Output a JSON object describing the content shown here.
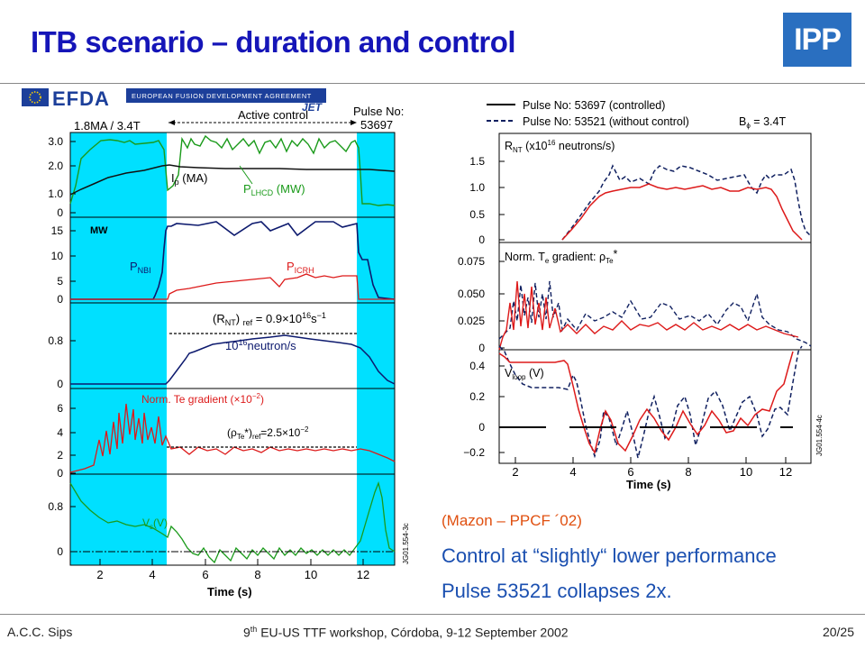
{
  "slide": {
    "title": "ITB scenario – duration and control",
    "logo_text": "IPP",
    "footer_left": "A.C.C. Sips",
    "footer_center_prefix": "9",
    "footer_center_sup": "th",
    "footer_center_suffix": " EU-US TTF workshop, Córdoba, 9-12 September 2002",
    "footer_right": "20/25",
    "colors": {
      "title": "#1515b8",
      "notes_blue": "#1a4fb0",
      "citation": "#e05010",
      "cyan": "#00e0ff",
      "green": "#1a9a1a",
      "navy": "#102060",
      "red": "#dd1a1a"
    }
  },
  "notes": {
    "citation": "(Mazon – PPCF ´02)",
    "line1": "Control at “slightly“ lower performance",
    "line2": "Pulse 53521 collapses 2x."
  },
  "left_figure": {
    "efda_text": "EFDA",
    "efda_sub": "EUROPEAN FUSION DEVELOPMENT AGREEMENT",
    "jet_text": "JET",
    "header_left": "1.8MA / 3.4T",
    "active_control": "Active control",
    "pulse_no_label": "Pulse No:",
    "pulse_no": "53697",
    "side_label": "JG01.554-3c",
    "xlabel": "Time (s)",
    "xticks": [
      "2",
      "4",
      "6",
      "8",
      "10",
      "12"
    ],
    "panels": [
      {
        "yticks": [
          "3.0",
          "2.0",
          "1.0",
          "0"
        ],
        "labels": {
          "ip": "I",
          "ip_sub": "p",
          "ip_unit": " (MA)",
          "plh": "P",
          "plh_sub": "LHCD",
          "plh_unit": " (MW)"
        }
      },
      {
        "yticks": [
          "15",
          "10",
          "5",
          "0"
        ],
        "labels": {
          "mw": "MW",
          "pnbi": "P",
          "pnbi_sub": "NBI",
          "picrh": "P",
          "picrh_sub": "ICRH"
        }
      },
      {
        "yticks": [
          "0.8",
          "0"
        ],
        "labels": {
          "ref_a": "(R",
          "ref_sub": "NT",
          "ref_b": ") ",
          "ref_sub2": "ref",
          "ref_c": " = 0.9×10",
          "ref_sup": "16",
          "ref_d": "s",
          "ref_sup2": "−1",
          "neut_a": "10",
          "neut_sup": "16",
          "neut_b": "neutron/s"
        }
      },
      {
        "yticks": [
          "6",
          "4",
          "2",
          "0"
        ],
        "labels": {
          "grad": "Norm. Te gradient (×10",
          "grad_sup": "−2",
          "grad_end": ")",
          "rho_a": "(ρ",
          "rho_sub": "Te",
          "rho_b": "*)",
          "rho_sub2": "ref",
          "rho_c": "=2.5×10",
          "rho_sup": "−2"
        }
      },
      {
        "yticks": [
          "0.8",
          "0"
        ],
        "labels": {
          "vs": "V",
          "vs_sub": "s",
          "vs_unit": "(V)"
        }
      }
    ]
  },
  "right_figure": {
    "legend": [
      {
        "label": "Pulse No: 53697 (controlled)",
        "style": "solid"
      },
      {
        "label": "Pulse No: 53521 (without control)",
        "style": "dashed"
      }
    ],
    "bphi_a": "B",
    "bphi_sub": "ϕ",
    "bphi_b": " = 3.4T",
    "side_label": "JG01.554-4c",
    "xlabel": "Time (s)",
    "xticks": [
      "2",
      "4",
      "6",
      "8",
      "10",
      "12"
    ],
    "panels": [
      {
        "yticks": [
          "1.5",
          "1.0",
          "0.5",
          "0"
        ],
        "label_a": "R",
        "label_sub": "NT",
        "label_b": " (x10",
        "label_sup": "16",
        "label_c": " neutrons/s)"
      },
      {
        "yticks": [
          "0.075",
          "0.050",
          "0.025",
          "0"
        ],
        "label_a": "Norm. T",
        "label_sub": "e",
        "label_b": " gradient: ρ",
        "label_sub2": "Te",
        "label_c": "*"
      },
      {
        "yticks": [
          "0.4",
          "0.2",
          "0",
          "−0.2"
        ],
        "label_a": "V",
        "label_sub": "loop",
        "label_b": " (V)"
      }
    ]
  }
}
